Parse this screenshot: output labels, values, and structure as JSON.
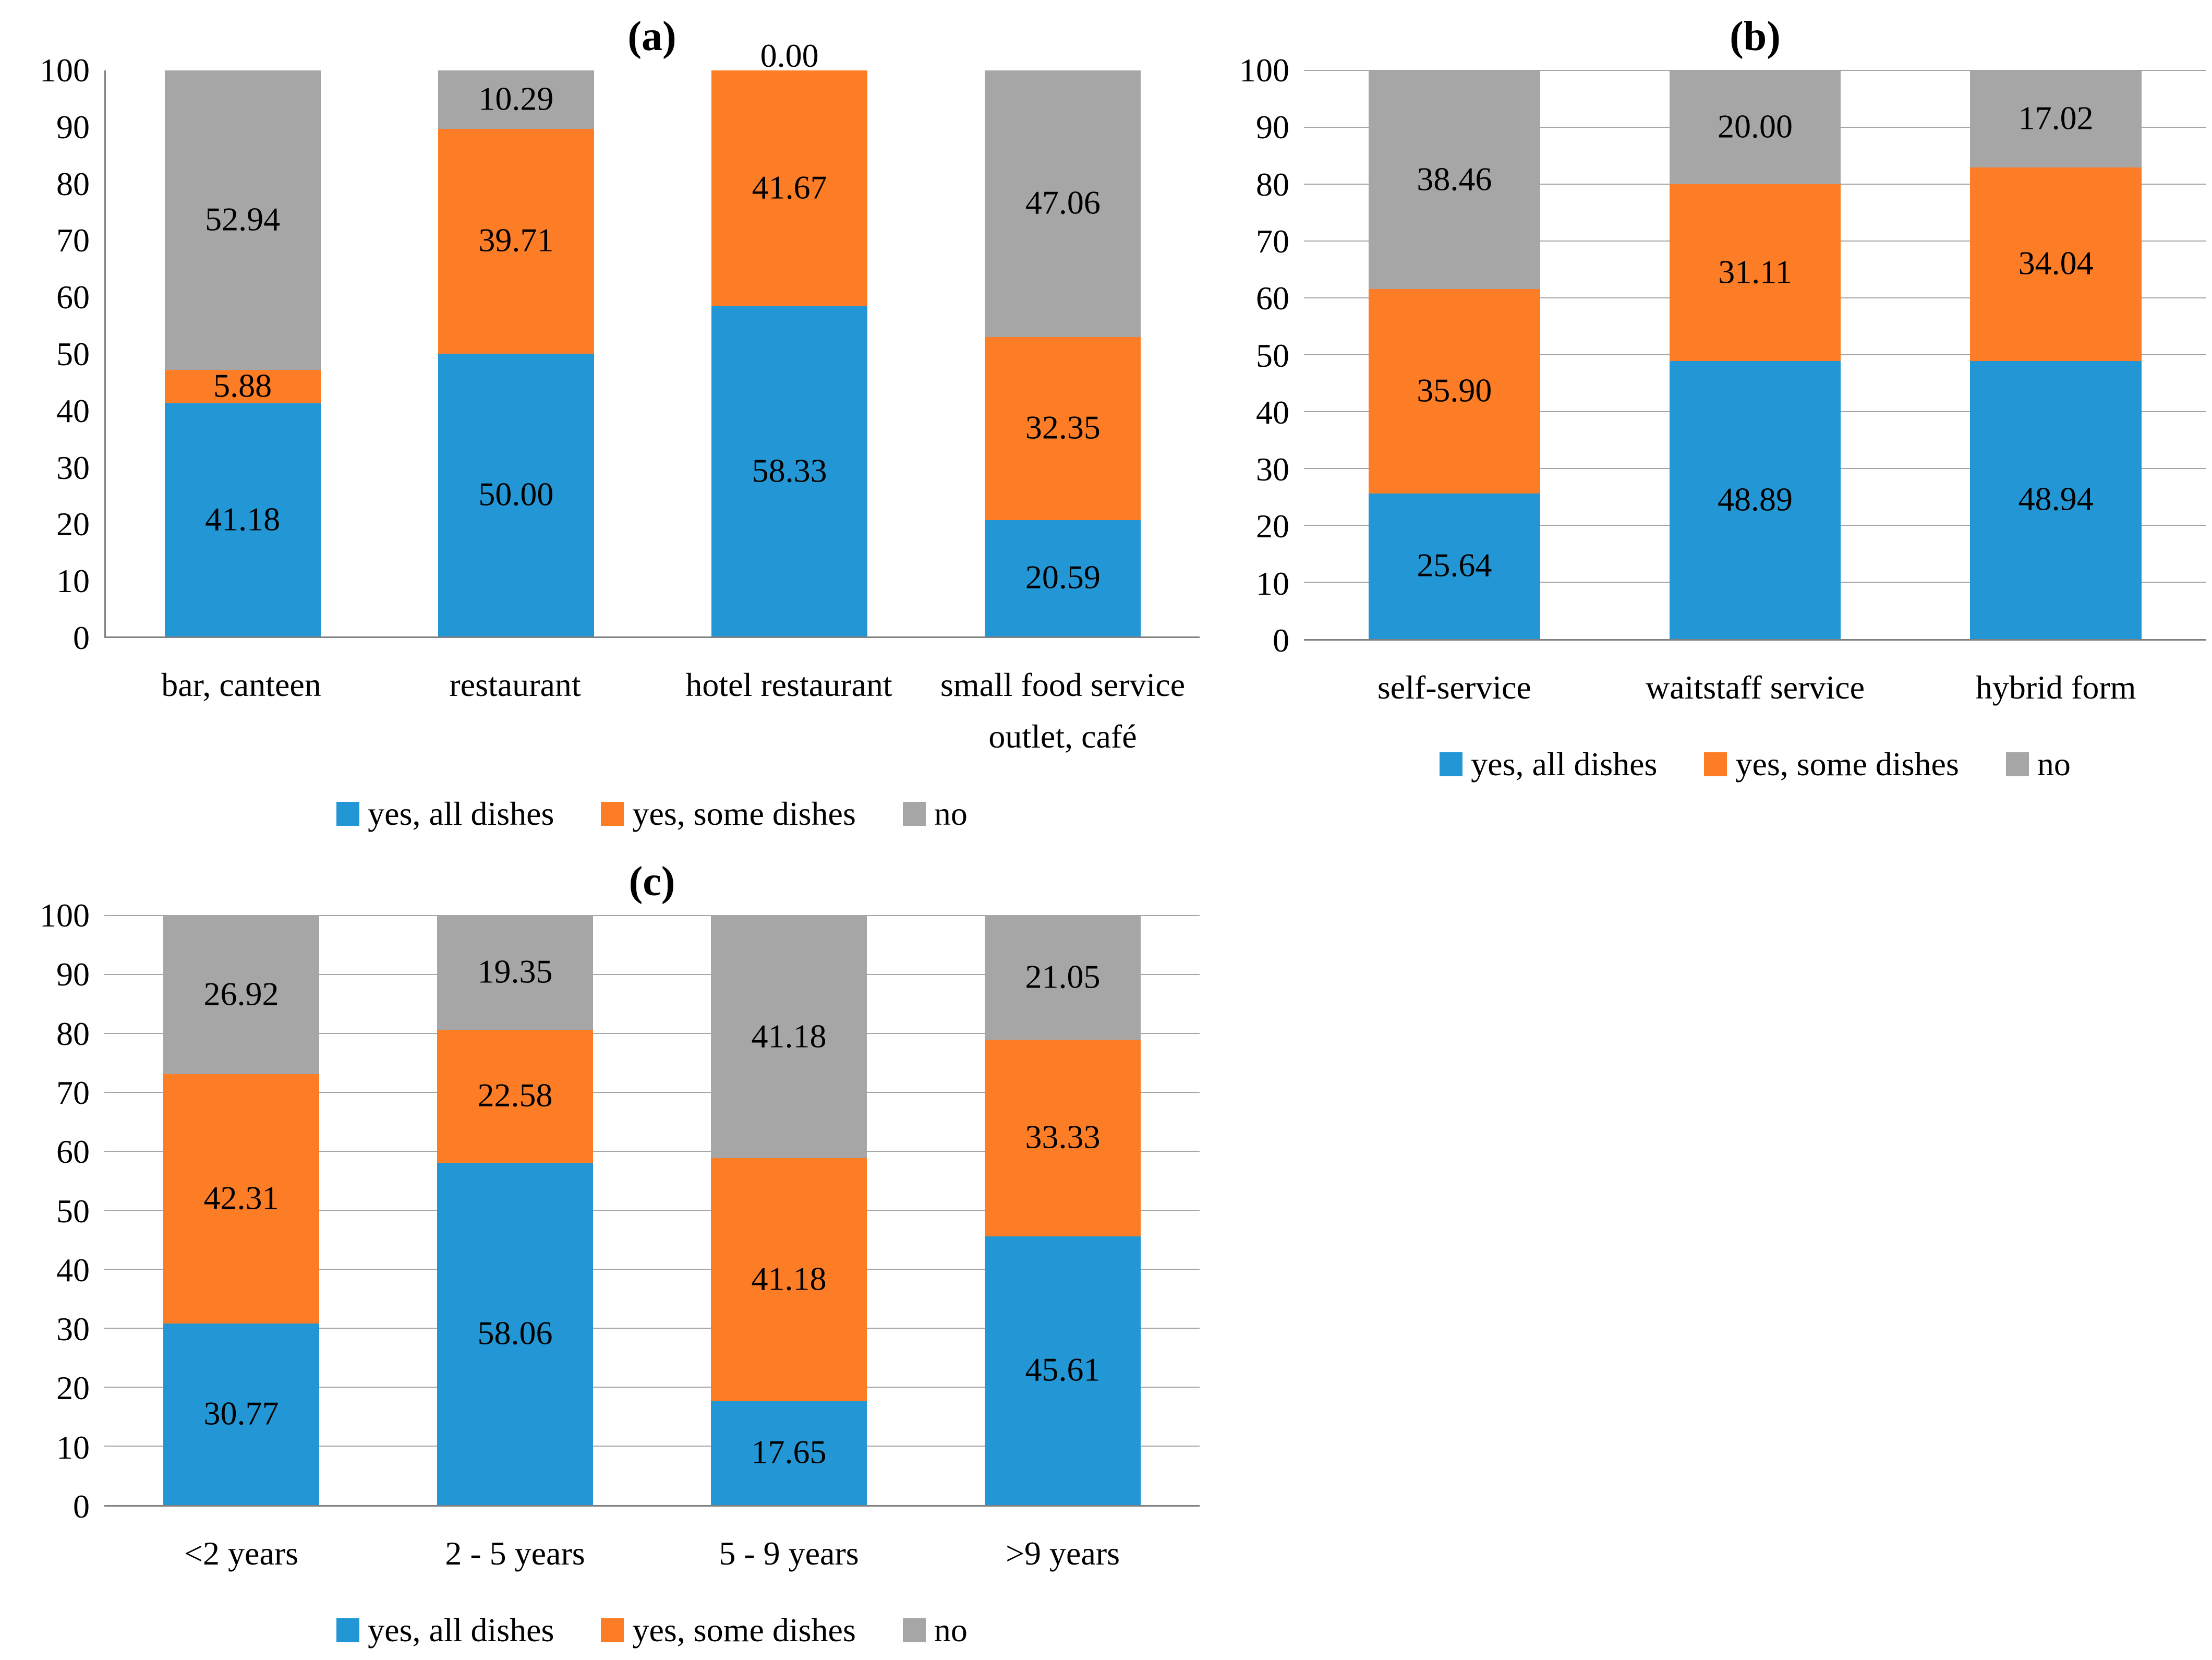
{
  "chart_data": [
    {
      "id": "a",
      "title": "(a)",
      "type": "bar",
      "stacked": true,
      "categories": [
        "bar, canteen",
        "restaurant",
        "hotel restaurant",
        "small food service outlet, café"
      ],
      "series": [
        {
          "name": "yes, all dishes",
          "color": "#2397d5",
          "values": [
            41.18,
            50.0,
            58.33,
            20.59
          ]
        },
        {
          "name": "yes, some dishes",
          "color": "#fc7d26",
          "values": [
            5.88,
            39.71,
            41.67,
            32.35
          ]
        },
        {
          "name": "no",
          "color": "#a6a6a6",
          "values": [
            52.94,
            10.29,
            0.0,
            47.06
          ]
        }
      ],
      "ylim": [
        0,
        100
      ],
      "yticks": [
        0,
        10,
        20,
        30,
        40,
        50,
        60,
        70,
        80,
        90,
        100
      ],
      "gridlines": false,
      "value_label_decimals": 2,
      "legend_position": "bottom"
    },
    {
      "id": "b",
      "title": "(b)",
      "type": "bar",
      "stacked": true,
      "categories": [
        "self-service",
        "waitstaff service",
        "hybrid form"
      ],
      "series": [
        {
          "name": "yes, all dishes",
          "color": "#2397d5",
          "values": [
            25.64,
            48.89,
            48.94
          ]
        },
        {
          "name": "yes, some dishes",
          "color": "#fc7d26",
          "values": [
            35.9,
            31.11,
            34.04
          ]
        },
        {
          "name": "no",
          "color": "#a6a6a6",
          "values": [
            38.46,
            20.0,
            17.02
          ]
        }
      ],
      "ylim": [
        0,
        100
      ],
      "yticks": [
        0,
        10,
        20,
        30,
        40,
        50,
        60,
        70,
        80,
        90,
        100
      ],
      "gridlines": true,
      "value_label_decimals": 2,
      "legend_position": "bottom"
    },
    {
      "id": "c",
      "title": "(c)",
      "type": "bar",
      "stacked": true,
      "categories": [
        "<2 years",
        "2 - 5 years",
        "5 - 9 years",
        ">9 years"
      ],
      "series": [
        {
          "name": "yes, all dishes",
          "color": "#2397d5",
          "values": [
            30.77,
            58.06,
            17.65,
            45.61
          ]
        },
        {
          "name": "yes, some dishes",
          "color": "#fc7d26",
          "values": [
            42.31,
            22.58,
            41.18,
            33.33
          ]
        },
        {
          "name": "no",
          "color": "#a6a6a6",
          "values": [
            26.92,
            19.35,
            41.18,
            21.05
          ]
        }
      ],
      "ylim": [
        0,
        100
      ],
      "yticks": [
        0,
        10,
        20,
        30,
        40,
        50,
        60,
        70,
        80,
        90,
        100
      ],
      "gridlines": true,
      "value_label_decimals": 2,
      "legend_position": "bottom"
    }
  ]
}
